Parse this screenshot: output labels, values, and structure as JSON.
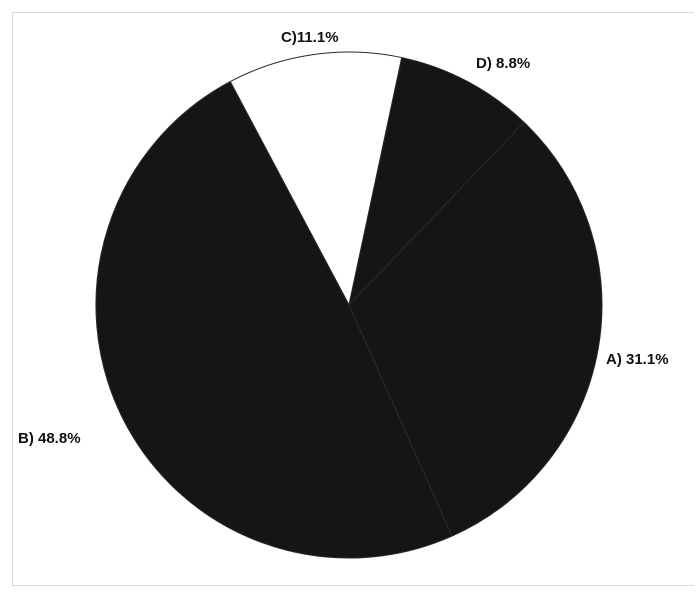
{
  "chart_data": {
    "type": "pie",
    "title": "",
    "labels": [
      "A) 31.1%",
      "B) 48.8%",
      "C)11.1%",
      "D) 8.8%"
    ],
    "values": [
      31.1,
      48.8,
      11.1,
      8.8
    ],
    "slices": [
      {
        "label": "A) 31.1%",
        "value": 31.1,
        "color": "#151515"
      },
      {
        "label": "B) 48.8%",
        "value": 48.8,
        "color": "#151515"
      },
      {
        "label": "C)11.1%",
        "value": 11.1,
        "color": "#ffffff"
      },
      {
        "label": "D) 8.8%",
        "value": 8.8,
        "color": "#151515"
      }
    ],
    "legend": false,
    "grid": false
  }
}
